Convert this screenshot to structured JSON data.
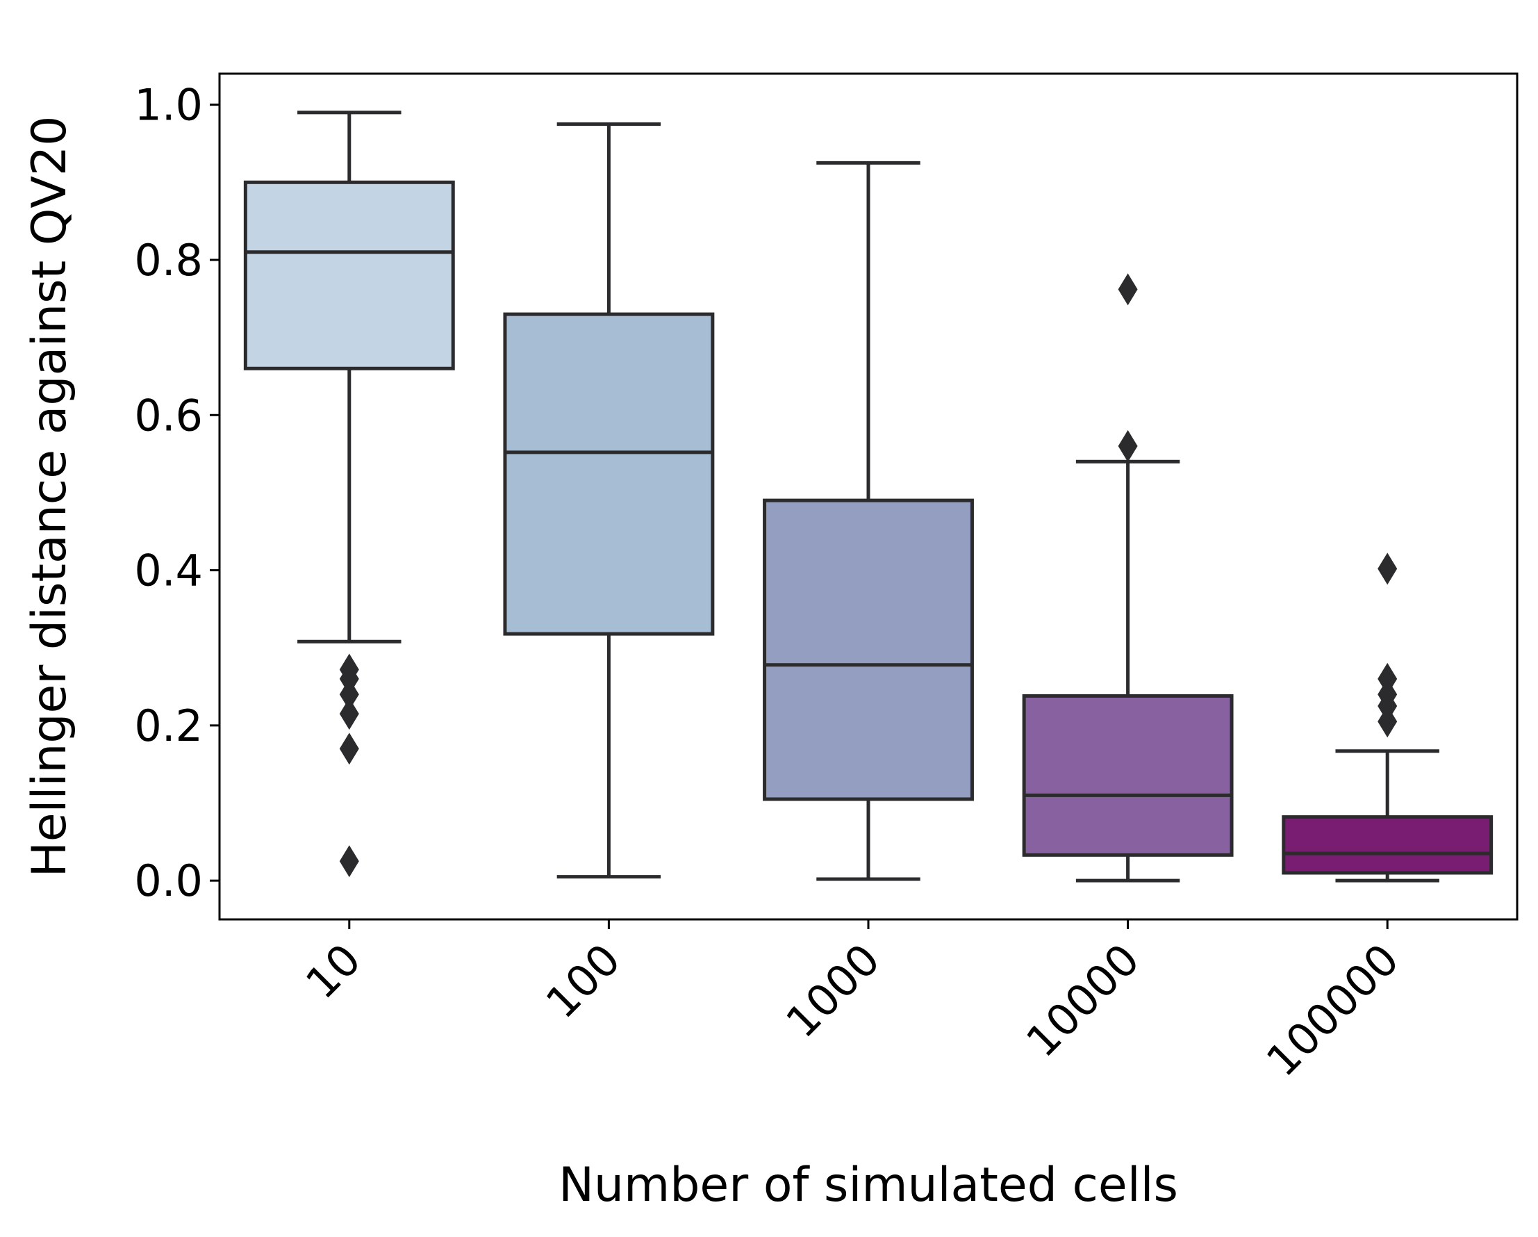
{
  "chart_data": {
    "type": "box",
    "xlabel": "Number of simulated cells",
    "ylabel": "Hellinger distance against QV20",
    "ylim": [
      -0.05,
      1.04
    ],
    "yticks": [
      "0.0",
      "0.2",
      "0.4",
      "0.6",
      "0.8",
      "1.0"
    ],
    "categories": [
      "10",
      "100",
      "1000",
      "10000",
      "100000"
    ],
    "boxes": [
      {
        "category": "10",
        "whisker_low": 0.308,
        "q1": 0.66,
        "median": 0.81,
        "q3": 0.9,
        "whisker_high": 0.99,
        "fill": "#c3d4e4",
        "outliers": [
          0.272,
          0.26,
          0.24,
          0.215,
          0.17,
          0.025
        ]
      },
      {
        "category": "100",
        "whisker_low": 0.005,
        "q1": 0.318,
        "median": 0.552,
        "q3": 0.73,
        "whisker_high": 0.975,
        "fill": "#a7bdd4",
        "outliers": []
      },
      {
        "category": "1000",
        "whisker_low": 0.002,
        "q1": 0.105,
        "median": 0.278,
        "q3": 0.49,
        "whisker_high": 0.925,
        "fill": "#949ec1",
        "outliers": []
      },
      {
        "category": "10000",
        "whisker_low": 0.0,
        "q1": 0.033,
        "median": 0.11,
        "q3": 0.238,
        "whisker_high": 0.54,
        "fill": "#8761a0",
        "outliers": [
          0.762,
          0.56
        ]
      },
      {
        "category": "100000",
        "whisker_low": 0.0,
        "q1": 0.01,
        "median": 0.035,
        "q3": 0.082,
        "whisker_high": 0.167,
        "fill": "#791d72",
        "outliers": [
          0.402,
          0.26,
          0.24,
          0.225,
          0.205
        ]
      }
    ],
    "grid": false,
    "legend": "none"
  }
}
